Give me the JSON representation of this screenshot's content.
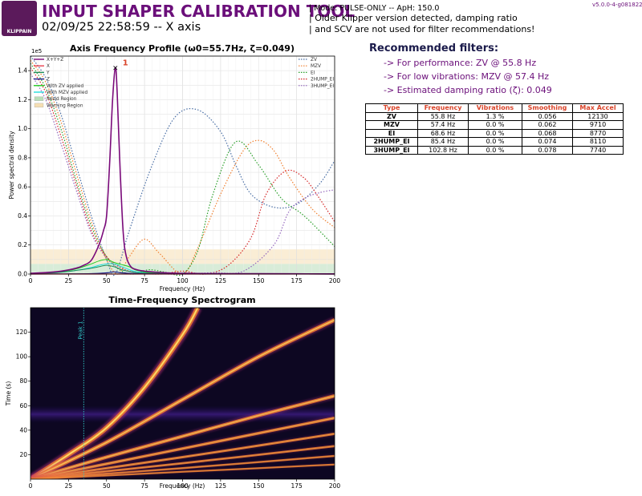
{
  "header": {
    "logo_text": "KLIPPAIN",
    "title": "INPUT SHAPER CALIBRATION TOOL",
    "subtitle": "02/09/25 22:58:59 -- X axis",
    "mode_line": "| Mode: PULSE-ONLY -- ApH: 150.0",
    "warning_line1": "| Older Klipper version detected, damping ratio",
    "warning_line2": "| and SCV are not used for filter recommendations!",
    "version": "v5.0.0-4-g0818224"
  },
  "recommendations": {
    "title": "Recommended filters:",
    "lines": [
      "-> For performance: ZV @ 55.8 Hz",
      "-> For low vibrations: MZV @ 57.4 Hz",
      "-> Estimated damping ratio (ζ): 0.049"
    ]
  },
  "filters_table": {
    "headers": [
      "Type",
      "Frequency",
      "Vibrations",
      "Smoothing",
      "Max Accel"
    ],
    "rows": [
      [
        "ZV",
        "55.8 Hz",
        "1.3 %",
        "0.056",
        "12130"
      ],
      [
        "MZV",
        "57.4 Hz",
        "0.0 %",
        "0.062",
        "9710"
      ],
      [
        "EI",
        "68.6 Hz",
        "0.0 %",
        "0.068",
        "8770"
      ],
      [
        "2HUMP_EI",
        "85.4 Hz",
        "0.0 %",
        "0.074",
        "8110"
      ],
      [
        "3HUMP_EI",
        "102.8 Hz",
        "0.0 %",
        "0.078",
        "7740"
      ]
    ]
  },
  "colors": {
    "title_purple": "#6b0f7a",
    "chart_title_red": "#d9442a",
    "xyz": "#7a0a7a",
    "x": "#e8414f",
    "y": "#1f8f5a",
    "z": "#1a1a8a",
    "zv_applied": "#22cc22",
    "mzv_applied": "#22dddd",
    "resid_region": "#b8ddb8",
    "warning_region": "#f5deb3",
    "zv": "#4a6fa5",
    "mzv": "#f08030",
    "ei": "#2ca02c",
    "hump2": "#d62728",
    "hump3": "#9467bd",
    "peak_line": "#30c8c8"
  },
  "chart_data": [
    {
      "type": "line",
      "title": "Axis Frequency Profile (ω0=55.7Hz, ζ=0.049)",
      "xlabel": "Frequency (Hz)",
      "ylabel": "Power spectral density",
      "y_multiplier": "1e5",
      "xlim": [
        0,
        200
      ],
      "ylim": [
        0,
        150000
      ],
      "x_ticks": [
        0,
        25,
        50,
        75,
        100,
        125,
        150,
        175,
        200
      ],
      "y_ticks": [
        0,
        20000,
        40000,
        60000,
        80000,
        100000,
        120000,
        140000
      ],
      "y_tick_labels": [
        "0.0",
        "0.2",
        "0.4",
        "0.6",
        "0.8",
        "1.0",
        "1.2",
        "1.4"
      ],
      "grid": true,
      "peak": {
        "label": "1",
        "x": 55.8,
        "y": 142000
      },
      "regions": [
        {
          "name": "Resid Region",
          "y_from": 0,
          "y_to": 7000
        },
        {
          "name": "Warning Region",
          "y_from": 7000,
          "y_to": 17000
        }
      ],
      "legend_left": [
        "X+Y+Z",
        "X",
        "Y",
        "Z",
        "With ZV applied",
        "With MZV applied",
        "Resid Region",
        "Warning Region"
      ],
      "legend_right": [
        "ZV",
        "MZV",
        "EI",
        "2HUMP_EI",
        "3HUMP_EI"
      ],
      "series": [
        {
          "name": "X+Y+Z",
          "x": [
            0,
            10,
            20,
            30,
            35,
            40,
            45,
            48,
            50,
            52,
            54,
            55.8,
            57,
            59,
            61,
            63,
            66,
            70,
            75,
            80,
            90,
            100,
            120,
            150,
            200
          ],
          "y": [
            500,
            1000,
            2000,
            4000,
            6000,
            9500,
            20000,
            30000,
            40000,
            75000,
            120000,
            142000,
            125000,
            70000,
            28000,
            12000,
            5000,
            3000,
            2000,
            1500,
            800,
            500,
            300,
            200,
            100
          ]
        },
        {
          "name": "X",
          "x": [
            0,
            10,
            20,
            30,
            40,
            50,
            55,
            60,
            70,
            80,
            100,
            150,
            200
          ],
          "y": [
            0,
            0,
            0,
            0,
            0,
            0,
            0,
            0,
            0,
            0,
            0,
            0,
            0
          ]
        },
        {
          "name": "Y",
          "x": [
            0,
            10,
            20,
            30,
            40,
            45,
            50,
            55,
            60,
            65,
            70,
            80,
            100,
            150,
            200
          ],
          "y": [
            200,
            500,
            1200,
            2500,
            4000,
            5000,
            6000,
            5000,
            3000,
            1800,
            900,
            500,
            200,
            100,
            50
          ]
        },
        {
          "name": "Z",
          "x": [
            0,
            20,
            40,
            50,
            55,
            60,
            70,
            80,
            100,
            150,
            200
          ],
          "y": [
            0,
            100,
            300,
            800,
            1500,
            800,
            300,
            200,
            100,
            50,
            0
          ]
        },
        {
          "name": "With ZV applied",
          "x": [
            0,
            10,
            20,
            30,
            40,
            45,
            50,
            55,
            60,
            65,
            70,
            80,
            100,
            150,
            200
          ],
          "y": [
            200,
            600,
            1500,
            3500,
            7000,
            9000,
            10000,
            8000,
            6500,
            5000,
            2500,
            800,
            300,
            100,
            50
          ]
        },
        {
          "name": "With MZV applied",
          "x": [
            0,
            10,
            20,
            30,
            40,
            45,
            50,
            55,
            60,
            65,
            70,
            80,
            100,
            150,
            200
          ],
          "y": [
            200,
            500,
            1200,
            2500,
            4500,
            6000,
            7000,
            7000,
            5000,
            3000,
            1500,
            500,
            200,
            80,
            40
          ]
        },
        {
          "name": "ZV",
          "x": [
            0,
            10,
            20,
            30,
            40,
            50,
            55.8,
            65,
            80,
            95,
            110,
            125,
            135,
            145,
            160,
            175,
            190,
            200
          ],
          "y": [
            150000,
            135000,
            110000,
            75000,
            40000,
            10000,
            0,
            30000,
            75000,
            108000,
            113000,
            98000,
            75000,
            55000,
            46000,
            48000,
            62000,
            78000
          ]
        },
        {
          "name": "MZV",
          "x": [
            0,
            10,
            20,
            30,
            40,
            50,
            57.4,
            65,
            75,
            85,
            100,
            110,
            125,
            140,
            150,
            160,
            170,
            185,
            200
          ],
          "y": [
            147000,
            132000,
            105000,
            70000,
            36000,
            10000,
            0,
            12000,
            24000,
            14000,
            0,
            18000,
            55000,
            85000,
            92000,
            85000,
            67000,
            45000,
            32000
          ]
        },
        {
          "name": "EI",
          "x": [
            0,
            10,
            20,
            30,
            40,
            50,
            60,
            68.6,
            78,
            90,
            100,
            110,
            120,
            135,
            150,
            165,
            180,
            200
          ],
          "y": [
            145000,
            128000,
            100000,
            65000,
            33000,
            12000,
            2000,
            0,
            3000,
            1000,
            0,
            16000,
            55000,
            91000,
            75000,
            52000,
            40000,
            19000
          ]
        },
        {
          "name": "2HUMP_EI",
          "x": [
            0,
            10,
            20,
            30,
            40,
            50,
            60,
            70,
            85.4,
            100,
            115,
            130,
            145,
            155,
            168,
            180,
            190,
            200
          ],
          "y": [
            142000,
            125000,
            95000,
            62000,
            30000,
            12000,
            4000,
            1000,
            0,
            2000,
            0,
            6000,
            25000,
            55000,
            71000,
            66000,
            52000,
            36000
          ]
        },
        {
          "name": "3HUMP_EI",
          "x": [
            0,
            10,
            20,
            30,
            40,
            50,
            60,
            75,
            90,
            102.8,
            120,
            140,
            160,
            170,
            180,
            190,
            200
          ],
          "y": [
            138000,
            120000,
            90000,
            58000,
            28000,
            11000,
            3000,
            1000,
            0,
            0,
            1000,
            2000,
            20000,
            43000,
            52000,
            56000,
            58000
          ]
        }
      ]
    },
    {
      "type": "heatmap",
      "title": "Time-Frequency Spectrogram",
      "xlabel": "Frequency (Hz)",
      "ylabel": "Time (s)",
      "xlim": [
        0,
        200
      ],
      "ylim": [
        0,
        140
      ],
      "x_ticks": [
        0,
        25,
        50,
        75,
        100,
        125,
        150,
        175,
        200
      ],
      "y_ticks": [
        20,
        40,
        60,
        80,
        100,
        120
      ],
      "peak_marker": {
        "label": "Peak 1",
        "x": 35
      },
      "sweep_lines": [
        {
          "x": [
            0,
            25,
            50,
            75,
            100,
            110
          ],
          "y": [
            0,
            20,
            42,
            75,
            118,
            140
          ],
          "intensity": 1.0
        },
        {
          "x": [
            0,
            50,
            100,
            150,
            200
          ],
          "y": [
            0,
            30,
            65,
            100,
            130
          ],
          "intensity": 0.75
        },
        {
          "x": [
            0,
            50,
            100,
            150,
            200
          ],
          "y": [
            0,
            18,
            35,
            52,
            68
          ],
          "intensity": 0.65
        },
        {
          "x": [
            0,
            100,
            200
          ],
          "y": [
            0,
            25,
            50
          ],
          "intensity": 0.5
        },
        {
          "x": [
            0,
            100,
            200
          ],
          "y": [
            0,
            18,
            37
          ],
          "intensity": 0.4
        },
        {
          "x": [
            0,
            100,
            200
          ],
          "y": [
            0,
            13,
            27
          ],
          "intensity": 0.35
        },
        {
          "x": [
            0,
            100,
            200
          ],
          "y": [
            0,
            9,
            19
          ],
          "intensity": 0.3
        },
        {
          "x": [
            0,
            100,
            200
          ],
          "y": [
            0,
            6,
            12
          ],
          "intensity": 0.25
        }
      ]
    }
  ]
}
